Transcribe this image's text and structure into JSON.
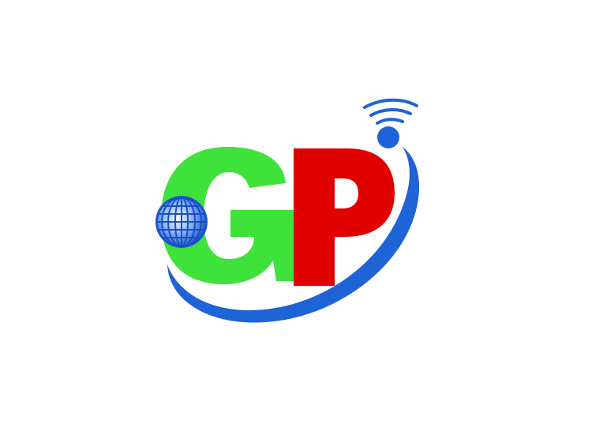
{
  "logo": {
    "letters": [
      "G",
      "P"
    ],
    "colors": {
      "g_letter": "#3ee23a",
      "p_letter": "#e00000",
      "orbit": "#1f64d6",
      "globe": "#1f64d6",
      "signal": "#1f64d6"
    },
    "icons": [
      "globe-icon",
      "wifi-signal-icon",
      "orbit-swoosh"
    ]
  }
}
